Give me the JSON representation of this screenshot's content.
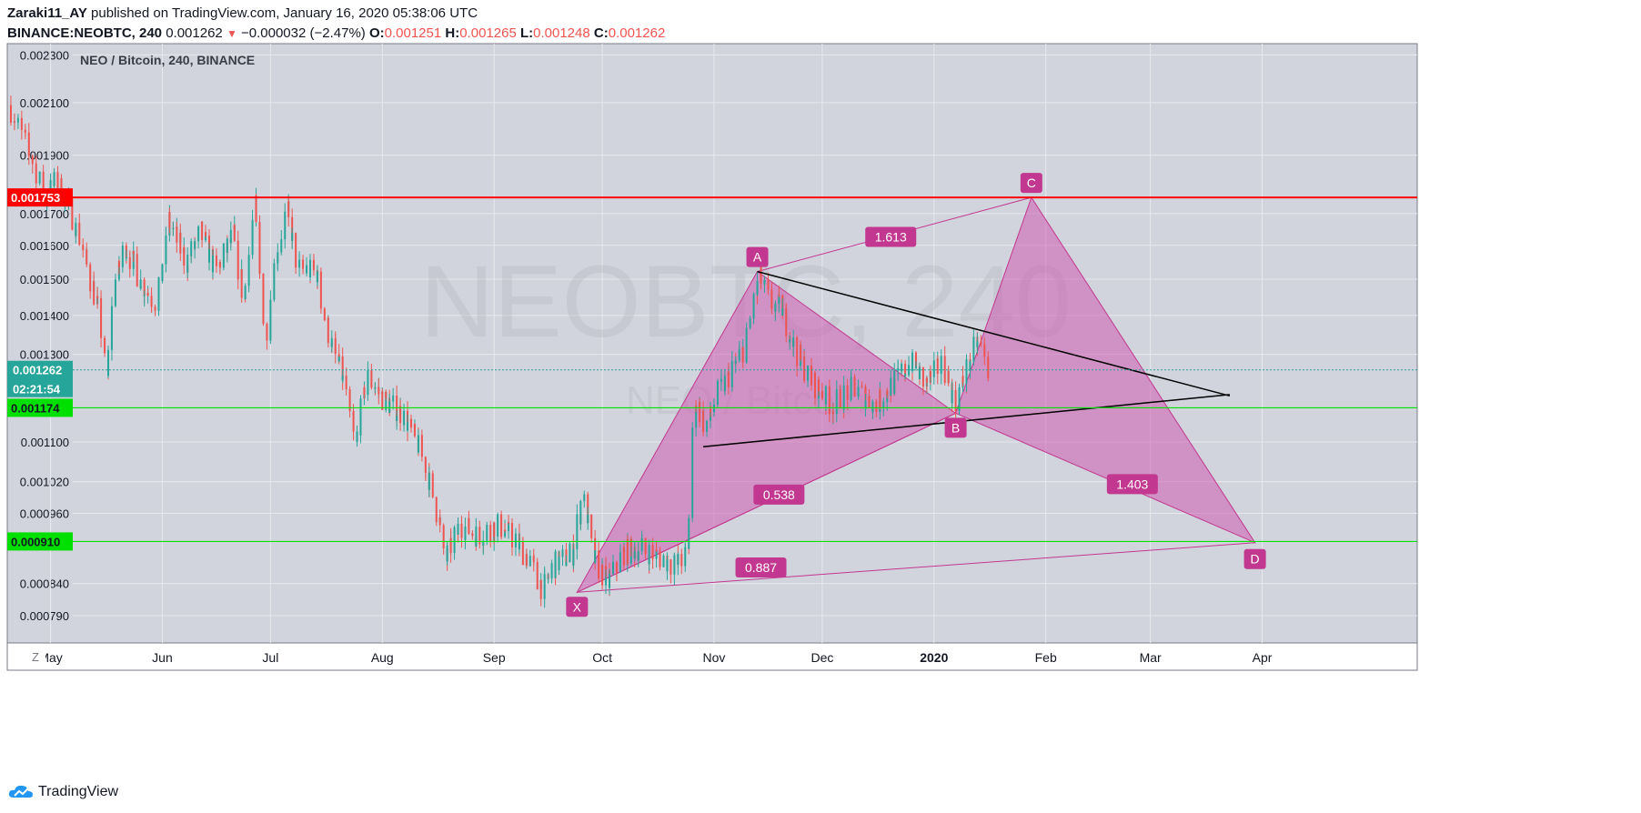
{
  "header": {
    "author": "Zaraki11_AY",
    "published": " published on TradingView.com, January 16, 2020 05:38:06 UTC",
    "symbol": "BINANCE:NEOBTC, 240",
    "last": "0.001262",
    "arrow": "▼",
    "change": "−0.000032 (−2.47%)",
    "o_label": "O:",
    "o": "0.001251",
    "h_label": "H:",
    "h": "0.001265",
    "l_label": "L:",
    "l": "0.001248",
    "c_label": "C:",
    "c": "0.001262"
  },
  "footer": {
    "brand": "TradingView",
    "logo_icon": "tradingview-logo-icon",
    "z_button": "Z"
  },
  "colors": {
    "background": "#d1d4dc",
    "grid": "#e7e9ef",
    "up": "#26a69a",
    "down": "#ef5350",
    "pattern_fill": "#d05bb0",
    "pattern_line": "#c2378f",
    "label_bg": "#c2378f",
    "red_line": "#ff0000",
    "green_line": "#00e000",
    "trend_line": "#000000"
  },
  "chart_data": {
    "type": "candlestick",
    "title": "NEO / Bitcoin, 240, BINANCE",
    "watermark_symbol": "NEOBTC, 240",
    "watermark_name": "NEO / Bitcoin",
    "x_ticks": [
      "May",
      "Jun",
      "Jul",
      "Aug",
      "Sep",
      "Oct",
      "Nov",
      "Dec",
      "2020",
      "Feb",
      "Mar",
      "Apr"
    ],
    "y_ticks": [
      "0.002300",
      "0.002100",
      "0.001900",
      "0.001700",
      "0.001600",
      "0.001500",
      "0.001400",
      "0.001300",
      "0.001100",
      "0.001020",
      "0.000960",
      "0.000840",
      "0.000790"
    ],
    "y_scale": "log",
    "ylim": [
      0.00075,
      0.00235
    ],
    "xlim": [
      "2019-04-19",
      "2020-05-14"
    ],
    "price_path": [
      [
        "2019-04-20",
        0.00209
      ],
      [
        "2019-04-24",
        0.00196
      ],
      [
        "2019-04-27",
        0.00186
      ],
      [
        "2019-04-30",
        0.00175
      ],
      [
        "2019-05-03",
        0.00181
      ],
      [
        "2019-05-07",
        0.00171
      ],
      [
        "2019-05-12",
        0.00152
      ],
      [
        "2019-05-15",
        0.0014
      ],
      [
        "2019-05-17",
        0.00124
      ],
      [
        "2019-05-19",
        0.00148
      ],
      [
        "2019-05-22",
        0.0016
      ],
      [
        "2019-05-27",
        0.00148
      ],
      [
        "2019-05-31",
        0.00143
      ],
      [
        "2019-06-03",
        0.00168
      ],
      [
        "2019-06-08",
        0.00155
      ],
      [
        "2019-06-12",
        0.00164
      ],
      [
        "2019-06-16",
        0.00152
      ],
      [
        "2019-06-21",
        0.00163
      ],
      [
        "2019-06-24",
        0.00144
      ],
      [
        "2019-06-27",
        0.00172
      ],
      [
        "2019-06-30",
        0.00133
      ],
      [
        "2019-07-03",
        0.00158
      ],
      [
        "2019-07-06",
        0.0017
      ],
      [
        "2019-07-09",
        0.00153
      ],
      [
        "2019-07-14",
        0.00152
      ],
      [
        "2019-07-17",
        0.00137
      ],
      [
        "2019-07-22",
        0.00122
      ],
      [
        "2019-07-25",
        0.00109
      ],
      [
        "2019-07-28",
        0.00125
      ],
      [
        "2019-08-02",
        0.00119
      ],
      [
        "2019-08-07",
        0.00116
      ],
      [
        "2019-08-12",
        0.00108
      ],
      [
        "2019-08-16",
        0.00098
      ],
      [
        "2019-08-19",
        0.00088
      ],
      [
        "2019-08-23",
        0.00094
      ],
      [
        "2019-08-28",
        0.00092
      ],
      [
        "2019-09-02",
        0.00094
      ],
      [
        "2019-09-06",
        0.00092
      ],
      [
        "2019-09-11",
        0.00088
      ],
      [
        "2019-09-15",
        0.00083
      ],
      [
        "2019-09-18",
        0.00087
      ],
      [
        "2019-09-23",
        0.00089
      ],
      [
        "2019-09-26",
        0.001
      ],
      [
        "2019-09-29",
        0.00088
      ],
      [
        "2019-10-03",
        0.00084
      ],
      [
        "2019-10-07",
        0.00089
      ],
      [
        "2019-10-12",
        0.0009
      ],
      [
        "2019-10-18",
        0.00088
      ],
      [
        "2019-10-22",
        0.00087
      ],
      [
        "2019-10-25",
        0.00089
      ],
      [
        "2019-10-27",
        0.0012
      ],
      [
        "2019-10-30",
        0.00113
      ],
      [
        "2019-11-02",
        0.0012
      ],
      [
        "2019-11-05",
        0.00124
      ],
      [
        "2019-11-10",
        0.00132
      ],
      [
        "2019-11-14",
        0.00151
      ],
      [
        "2019-11-17",
        0.00143
      ],
      [
        "2019-11-20",
        0.00142
      ],
      [
        "2019-11-24",
        0.00131
      ],
      [
        "2019-11-28",
        0.00124
      ],
      [
        "2019-12-04",
        0.00118
      ],
      [
        "2019-12-10",
        0.00122
      ],
      [
        "2019-12-16",
        0.00118
      ],
      [
        "2019-12-21",
        0.00123
      ],
      [
        "2019-12-26",
        0.00128
      ],
      [
        "2019-12-30",
        0.00123
      ],
      [
        "2020-01-04",
        0.00128
      ],
      [
        "2020-01-07",
        0.00118
      ],
      [
        "2020-01-10",
        0.00125
      ],
      [
        "2020-01-13",
        0.00133
      ],
      [
        "2020-01-15",
        0.00131
      ],
      [
        "2020-01-16",
        0.00126
      ]
    ],
    "horizontal_lines": [
      {
        "price": 0.001753,
        "label": "0.001753",
        "color": "red"
      },
      {
        "price": 0.001174,
        "label": "0.001174",
        "color": "green"
      },
      {
        "price": 0.00091,
        "label": "0.000910",
        "color": "green"
      }
    ],
    "last_price": {
      "price": 0.001262,
      "label": "0.001262",
      "countdown": "02:21:54"
    },
    "harmonic_pattern": {
      "points": [
        {
          "name": "X",
          "date": "2019-09-24",
          "price": 0.000826
        },
        {
          "name": "A",
          "date": "2019-11-13",
          "price": 0.001522
        },
        {
          "name": "B",
          "date": "2020-01-07",
          "price": 0.001162
        },
        {
          "name": "C",
          "date": "2020-01-28",
          "price": 0.001753
        },
        {
          "name": "D",
          "date": "2020-03-30",
          "price": 0.000908
        }
      ],
      "ratios": [
        {
          "label": "1.613",
          "date": "2019-12-20",
          "price": 0.001626
        },
        {
          "label": "0.538",
          "date": "2019-11-19",
          "price": 0.000995
        },
        {
          "label": "1.403",
          "date": "2020-02-25",
          "price": 0.001015
        },
        {
          "label": "0.887",
          "date": "2019-11-14",
          "price": 0.000866
        }
      ]
    },
    "trend_lines": [
      {
        "from": {
          "date": "2019-11-13",
          "price": 0.001522
        },
        "to": {
          "date": "2020-03-23",
          "price": 0.001201
        }
      },
      {
        "from": {
          "date": "2019-10-29",
          "price": 0.00109
        },
        "to": {
          "date": "2020-03-23",
          "price": 0.001204
        }
      }
    ]
  }
}
